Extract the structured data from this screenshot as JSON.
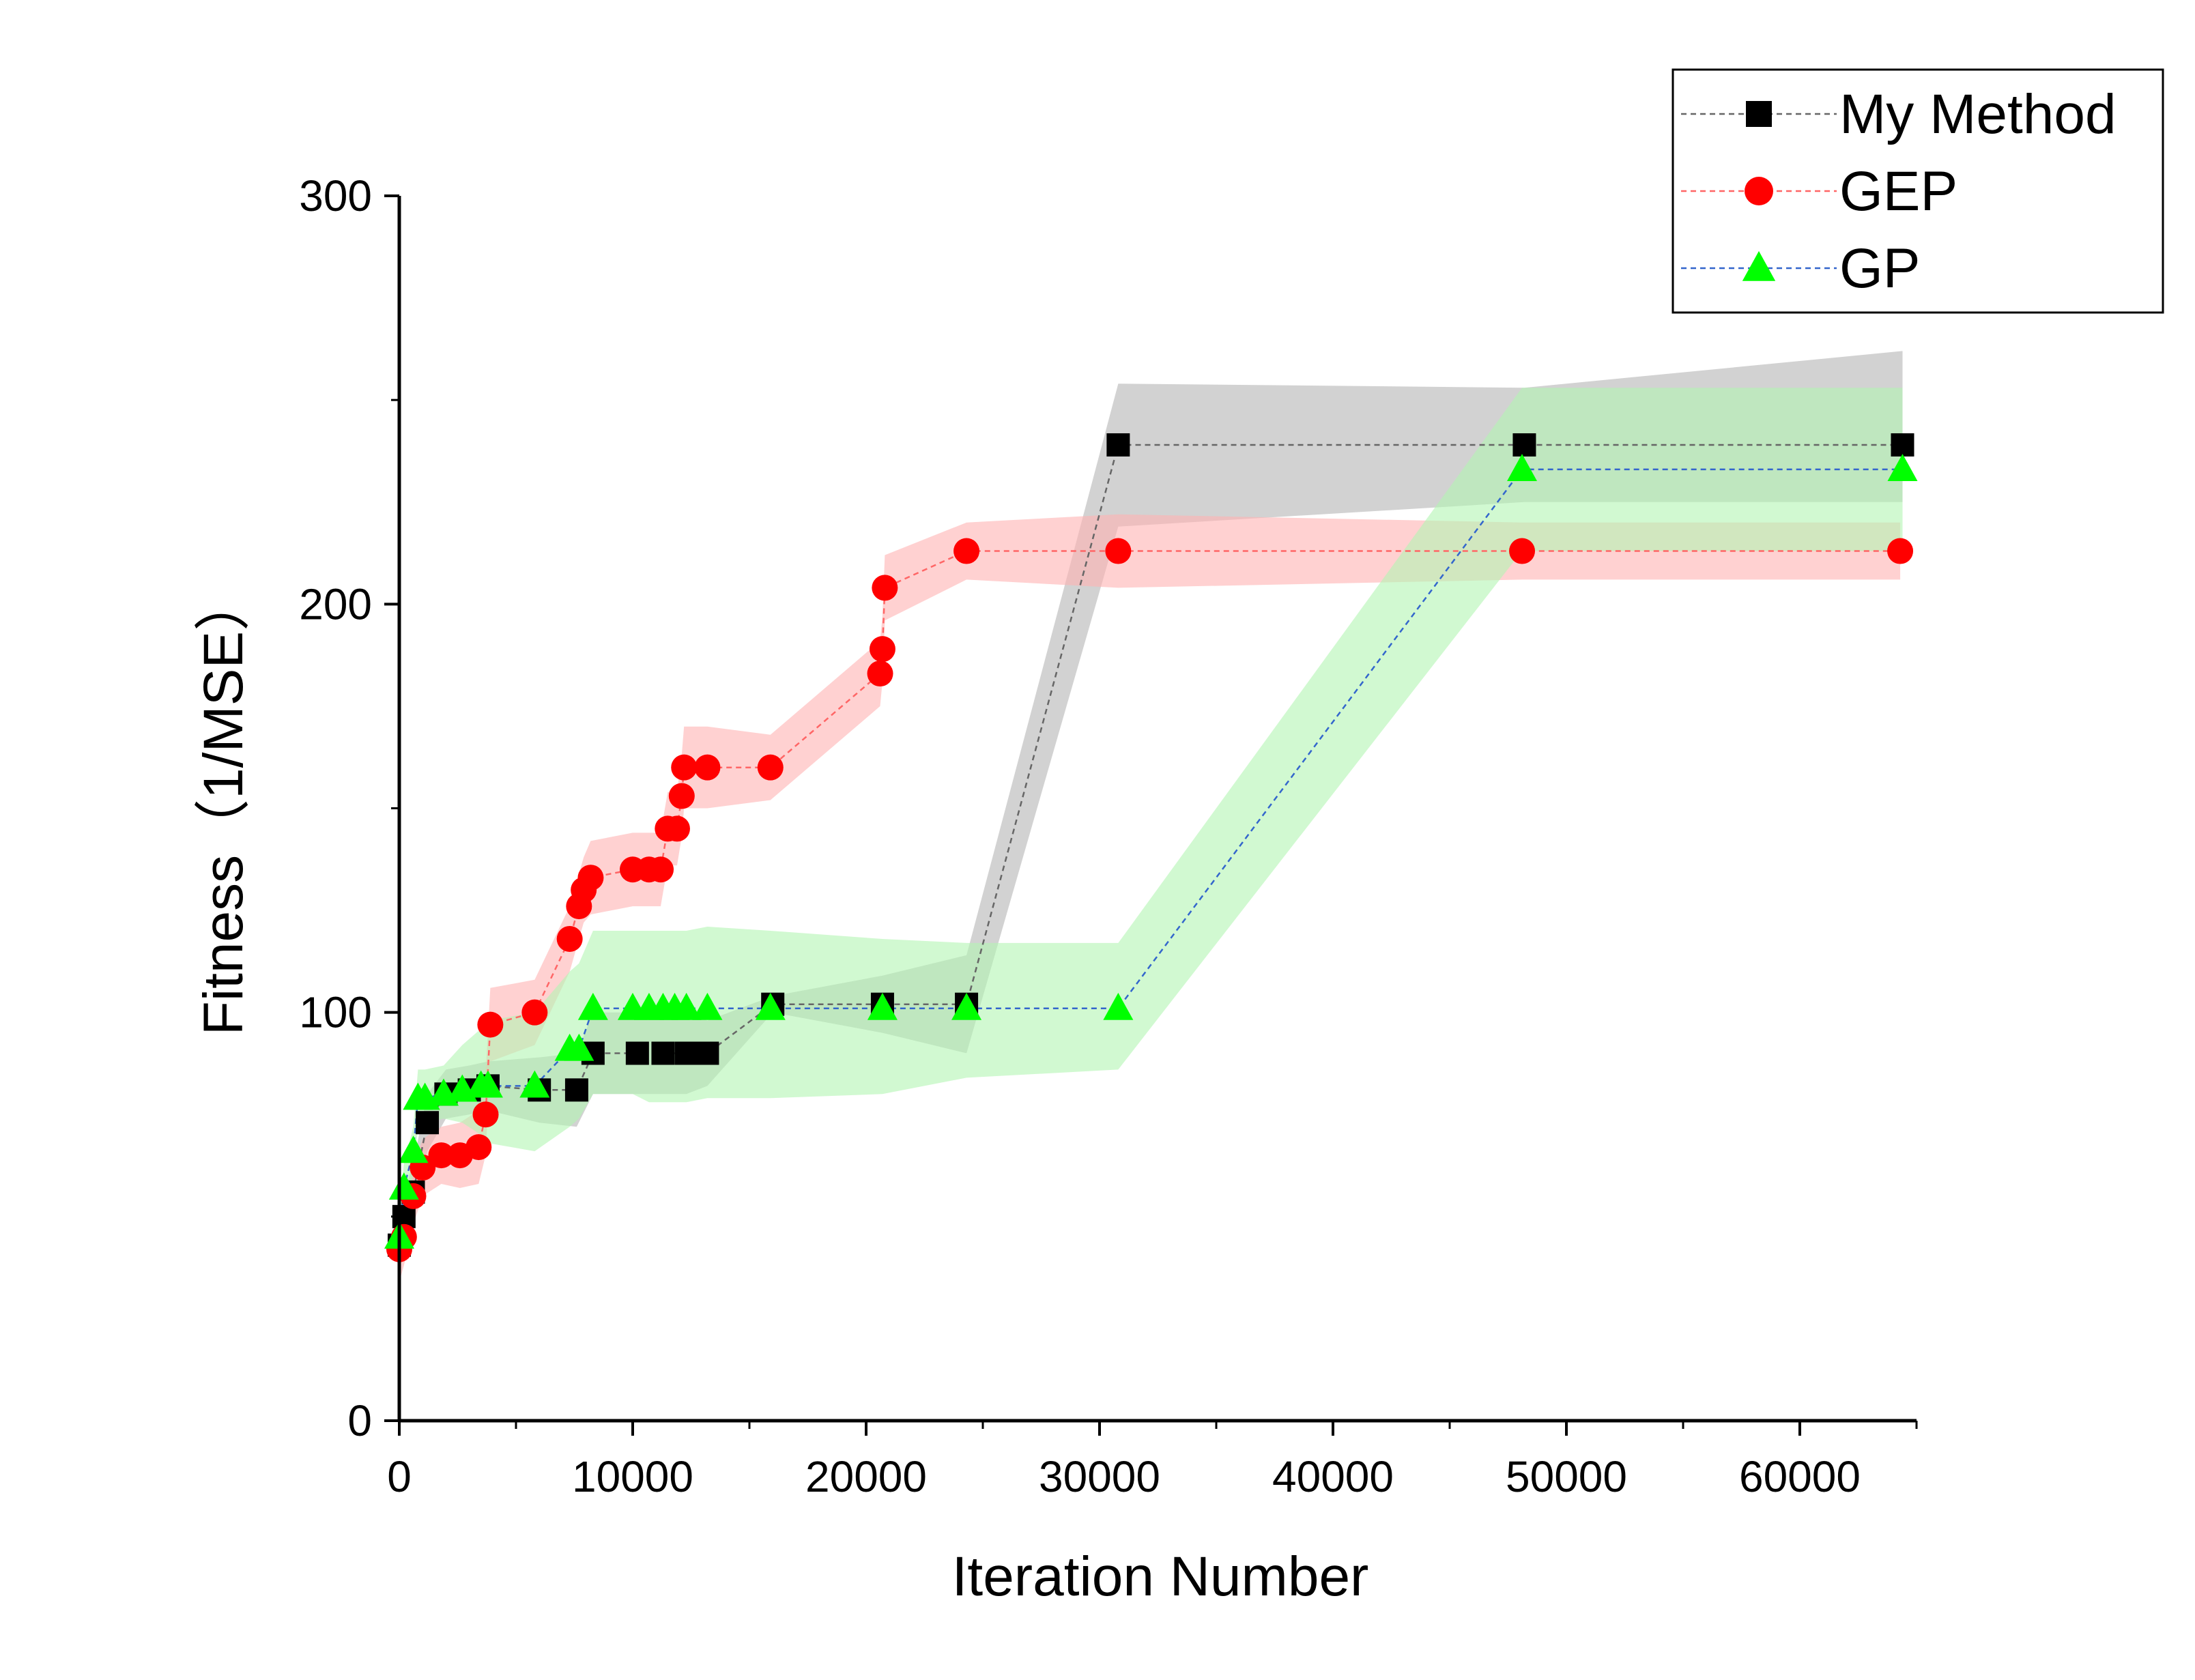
{
  "chart_data": {
    "type": "line",
    "title": "",
    "xlabel": "Iteration Number",
    "ylabel": "Fitness（1/MSE）",
    "xlim": [
      0,
      65000
    ],
    "ylim": [
      0,
      300
    ],
    "xticks": [
      0,
      10000,
      20000,
      30000,
      40000,
      50000,
      60000
    ],
    "yticks": [
      0,
      100,
      200,
      300
    ],
    "xtick_labels": [
      "0",
      "10000",
      "20000",
      "30000",
      "40000",
      "50000",
      "60000"
    ],
    "ytick_labels": [
      "0",
      "100",
      "200",
      "300"
    ],
    "grid": false,
    "legend_position": "top-right",
    "series": [
      {
        "name": "My Method",
        "marker": "square",
        "color": "#000000",
        "line_color": "#666666",
        "band_color": "#b4b4b4",
        "x": [
          0,
          200,
          600,
          1200,
          2000,
          3000,
          3800,
          6000,
          7600,
          8300,
          10200,
          11300,
          12300,
          13200,
          16000,
          20700,
          24300,
          30800,
          48200,
          64400
        ],
        "y": [
          43,
          50,
          56,
          73,
          80,
          81,
          82,
          81,
          81,
          90,
          90,
          90,
          90,
          90,
          102,
          102,
          102,
          239,
          239,
          239
        ],
        "lower": [
          38,
          44,
          49,
          66,
          74,
          75,
          76,
          73,
          72,
          80,
          80,
          80,
          80,
          82,
          100,
          95,
          90,
          219,
          225,
          225
        ],
        "upper": [
          48,
          56,
          63,
          80,
          86,
          87,
          88,
          89,
          90,
          100,
          100,
          100,
          100,
          98,
          104,
          109,
          114,
          254,
          253,
          262
        ]
      },
      {
        "name": "GEP",
        "marker": "circle",
        "color": "#ff0000",
        "line_color": "#ff6666",
        "band_color": "#ffb2b2",
        "x": [
          0,
          200,
          600,
          1000,
          1800,
          2600,
          3400,
          3700,
          3900,
          5800,
          7300,
          7700,
          7900,
          8200,
          10000,
          10700,
          11200,
          11500,
          11900,
          12100,
          12200,
          13200,
          15900,
          20600,
          20700,
          20800,
          24300,
          30800,
          48100,
          64300
        ],
        "y": [
          42,
          45,
          55,
          62,
          65,
          65,
          67,
          75,
          97,
          100,
          118,
          126,
          130,
          133,
          135,
          135,
          135,
          145,
          145,
          153,
          160,
          160,
          160,
          183,
          189,
          204,
          213,
          213,
          213,
          213
        ],
        "lower": [
          34,
          38,
          48,
          55,
          58,
          57,
          58,
          65,
          88,
          92,
          110,
          118,
          122,
          124,
          126,
          126,
          126,
          136,
          136,
          143,
          150,
          150,
          152,
          175,
          181,
          196,
          206,
          204,
          206,
          206
        ],
        "upper": [
          50,
          52,
          62,
          69,
          72,
          73,
          76,
          85,
          106,
          108,
          126,
          134,
          138,
          142,
          144,
          144,
          144,
          154,
          154,
          163,
          170,
          170,
          168,
          191,
          197,
          212,
          220,
          222,
          220,
          220
        ]
      },
      {
        "name": "GP",
        "marker": "triangle",
        "color": "#00ff00",
        "line_color": "#3366cc",
        "band_color": "#b2f5b2",
        "x": [
          0,
          200,
          600,
          800,
          1100,
          1900,
          2700,
          3500,
          3800,
          5800,
          7300,
          7700,
          8300,
          10000,
          10700,
          11300,
          11800,
          12300,
          13200,
          15900,
          20700,
          24300,
          30800,
          48100,
          64400
        ],
        "y": [
          45,
          57,
          66,
          79,
          79,
          80,
          81,
          82,
          82,
          82,
          91,
          91,
          101,
          101,
          101,
          101,
          101,
          101,
          101,
          101,
          101,
          101,
          101,
          233,
          233
        ],
        "lower": [
          40,
          51,
          60,
          72,
          73,
          74,
          73,
          70,
          68,
          66,
          72,
          74,
          80,
          80,
          78,
          78,
          78,
          78,
          79,
          79,
          80,
          84,
          86,
          213,
          213
        ],
        "upper": [
          50,
          63,
          72,
          86,
          86,
          87,
          92,
          96,
          98,
          100,
          110,
          112,
          120,
          120,
          120,
          120,
          120,
          120,
          121,
          120,
          118,
          117,
          117,
          253,
          253
        ]
      }
    ]
  }
}
